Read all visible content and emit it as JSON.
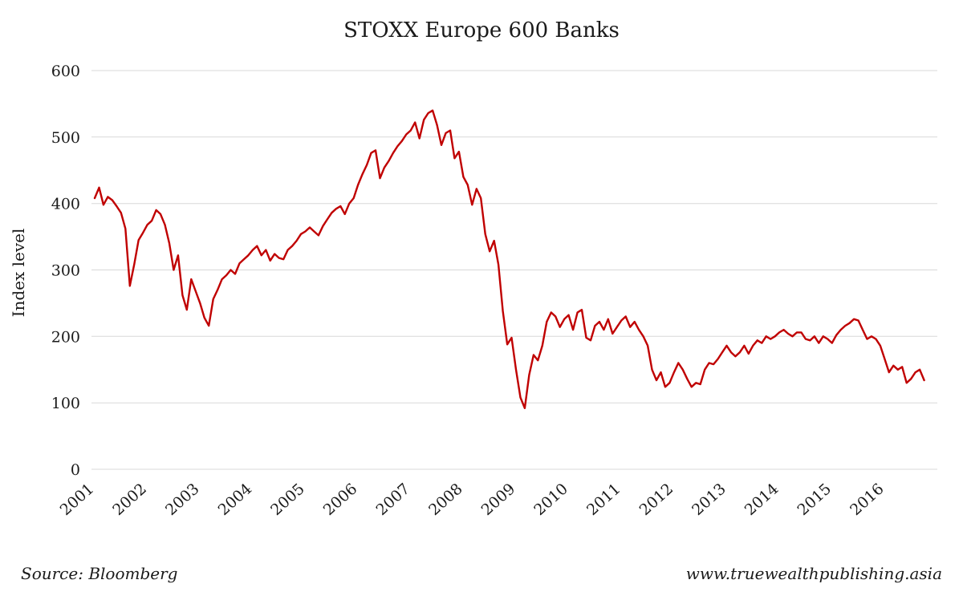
{
  "page": {
    "background": "#ffffff"
  },
  "chart_data": {
    "type": "line",
    "title": "STOXX Europe 600 Banks",
    "xlabel": "",
    "ylabel": "Index level",
    "series_name": "STOXX Europe 600 Banks",
    "line_color": "#c00000",
    "grid": "horizontal",
    "legend": "none",
    "ylim": [
      0,
      600
    ],
    "y_ticks": [
      0,
      100,
      200,
      300,
      400,
      500,
      600
    ],
    "x_ticks": [
      2001,
      2002,
      2003,
      2004,
      2005,
      2006,
      2007,
      2008,
      2009,
      2010,
      2011,
      2012,
      2013,
      2014,
      2015,
      2016
    ],
    "x_range": [
      2001,
      2017
    ],
    "start_year": 2001,
    "points_per_year": 12,
    "values": [
      408,
      424,
      398,
      410,
      405,
      396,
      386,
      362,
      276,
      308,
      345,
      356,
      368,
      374,
      390,
      384,
      368,
      340,
      300,
      322,
      262,
      240,
      286,
      268,
      250,
      228,
      216,
      256,
      270,
      286,
      292,
      300,
      294,
      310,
      316,
      322,
      330,
      336,
      322,
      330,
      314,
      324,
      318,
      316,
      330,
      336,
      344,
      354,
      358,
      364,
      358,
      352,
      366,
      376,
      386,
      392,
      396,
      384,
      400,
      408,
      428,
      444,
      458,
      476,
      480,
      438,
      454,
      464,
      476,
      486,
      494,
      504,
      510,
      522,
      498,
      526,
      536,
      540,
      518,
      488,
      506,
      510,
      468,
      478,
      440,
      428,
      398,
      422,
      408,
      354,
      328,
      344,
      308,
      238,
      188,
      198,
      150,
      108,
      92,
      142,
      172,
      164,
      186,
      222,
      236,
      230,
      214,
      226,
      232,
      210,
      236,
      240,
      198,
      194,
      216,
      222,
      210,
      226,
      204,
      214,
      224,
      230,
      214,
      222,
      210,
      200,
      186,
      150,
      134,
      146,
      124,
      130,
      146,
      160,
      150,
      136,
      124,
      130,
      128,
      150,
      160,
      158,
      166,
      176,
      186,
      176,
      170,
      176,
      186,
      174,
      186,
      194,
      190,
      200,
      196,
      200,
      206,
      210,
      204,
      200,
      206,
      206,
      196,
      194,
      200,
      190,
      200,
      196,
      190,
      202,
      210,
      216,
      220,
      226,
      224,
      210,
      196,
      200,
      196,
      186,
      166,
      146,
      156,
      150,
      154,
      130,
      136,
      146,
      150,
      134
    ]
  },
  "footer": {
    "source": "Source: Bloomberg",
    "website": "www.truewealthpublishing.asia"
  }
}
